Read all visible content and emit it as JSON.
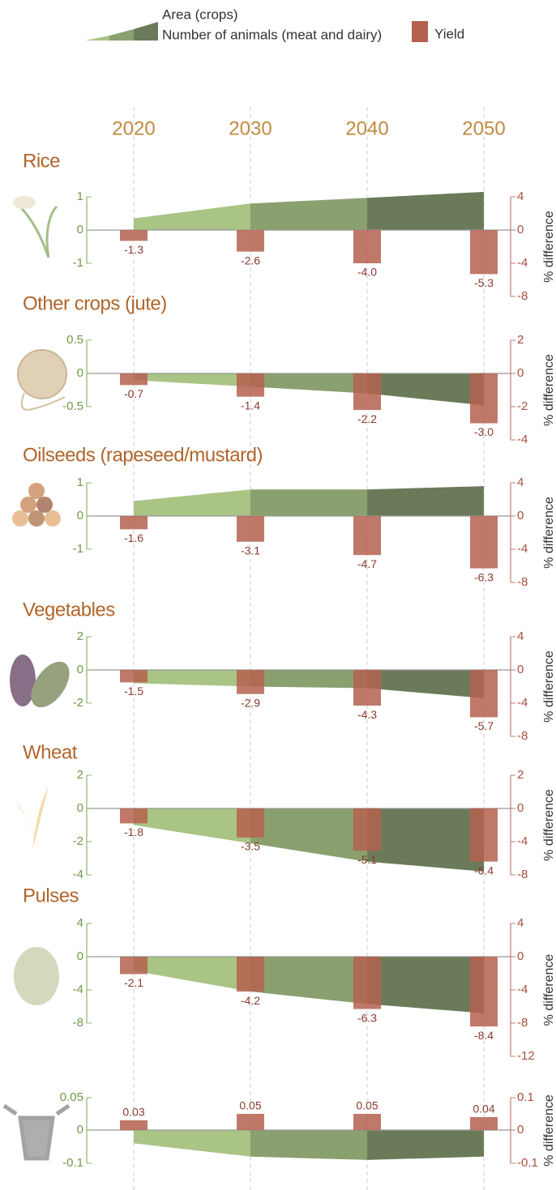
{
  "chart_data": [
    {
      "type": "combo",
      "title": "Rice",
      "categories": [
        "2020",
        "2030",
        "2040",
        "2050"
      ],
      "series": [
        {
          "name": "Area (crops)",
          "colors": [
            "#a9c485",
            "#8aa06f",
            "#6b7b5a"
          ],
          "values": [
            0.35,
            0.8,
            0.97,
            1.15
          ]
        },
        {
          "name": "Yield",
          "color": "#b5614f",
          "axis": "y2",
          "values": [
            -1.3,
            -2.6,
            -4.0,
            -5.3
          ],
          "value_labels": [
            "-1.3",
            "-2.6",
            "-4.0",
            "-5.3"
          ]
        }
      ],
      "ylim": [
        -1,
        1
      ],
      "yticks": [
        -1,
        0,
        1
      ],
      "y2lim": [
        -8,
        4
      ],
      "y2ticks": [
        4,
        0,
        -4,
        -8
      ],
      "y2label": "% difference"
    },
    {
      "type": "combo",
      "title": "Other crops (jute)",
      "categories": [
        "2020",
        "2030",
        "2040",
        "2050"
      ],
      "series": [
        {
          "name": "Area (crops)",
          "colors": [
            "#a9c485",
            "#8aa06f",
            "#6b7b5a"
          ],
          "values": [
            -0.1,
            -0.2,
            -0.3,
            -0.48
          ]
        },
        {
          "name": "Yield",
          "color": "#b5614f",
          "axis": "y2",
          "values": [
            -0.7,
            -1.4,
            -2.2,
            -3.0
          ],
          "value_labels": [
            "-0.7",
            "-1.4",
            "-2.2",
            "-3.0"
          ]
        }
      ],
      "ylim": [
        -0.5,
        0.5
      ],
      "yticks": [
        0.5,
        0,
        -0.5
      ],
      "y2lim": [
        -4,
        2
      ],
      "y2ticks": [
        2,
        0,
        -2,
        -4
      ],
      "y2label": "% difference"
    },
    {
      "type": "combo",
      "title": "Oilseeds (rapeseed/mustard)",
      "categories": [
        "2020",
        "2030",
        "2040",
        "2050"
      ],
      "series": [
        {
          "name": "Area (crops)",
          "colors": [
            "#a9c485",
            "#8aa06f",
            "#6b7b5a"
          ],
          "values": [
            0.45,
            0.8,
            0.8,
            0.9
          ]
        },
        {
          "name": "Yield",
          "color": "#b5614f",
          "axis": "y2",
          "values": [
            -1.6,
            -3.1,
            -4.7,
            -6.3
          ],
          "value_labels": [
            "-1.6",
            "-3.1",
            "-4.7",
            "-6.3"
          ]
        }
      ],
      "ylim": [
        -1,
        1
      ],
      "yticks": [
        1,
        0,
        -1
      ],
      "y2lim": [
        -8,
        4
      ],
      "y2ticks": [
        4,
        0,
        -4,
        -8
      ],
      "y2label": "% difference"
    },
    {
      "type": "combo",
      "title": "Vegetables",
      "categories": [
        "2020",
        "2030",
        "2040",
        "2050"
      ],
      "series": [
        {
          "name": "Area (crops)",
          "colors": [
            "#a9c485",
            "#8aa06f",
            "#6b7b5a"
          ],
          "values": [
            -0.8,
            -1.0,
            -1.1,
            -1.7
          ]
        },
        {
          "name": "Yield",
          "color": "#b5614f",
          "axis": "y2",
          "values": [
            -1.5,
            -2.9,
            -4.3,
            -5.7
          ],
          "value_labels": [
            "-1.5",
            "-2.9",
            "-4.3",
            "-5.7"
          ]
        }
      ],
      "ylim": [
        -2,
        2
      ],
      "yticks": [
        2,
        0,
        -2
      ],
      "y2lim": [
        -8,
        4
      ],
      "y2ticks": [
        4,
        0,
        -4,
        -8
      ],
      "y2label": "% difference"
    },
    {
      "type": "combo",
      "title": "Wheat",
      "categories": [
        "2020",
        "2030",
        "2040",
        "2050"
      ],
      "series": [
        {
          "name": "Area (crops)",
          "colors": [
            "#a9c485",
            "#8aa06f",
            "#6b7b5a"
          ],
          "values": [
            -1.0,
            -2.1,
            -3.2,
            -3.8
          ]
        },
        {
          "name": "Yield",
          "color": "#b5614f",
          "axis": "y2",
          "values": [
            -1.8,
            -3.5,
            -5.1,
            -6.4
          ],
          "value_labels": [
            "-1.8",
            "-3.5",
            "-5.1",
            "-6.4"
          ]
        }
      ],
      "ylim": [
        -4,
        2
      ],
      "yticks": [
        2,
        0,
        -2,
        -4
      ],
      "y2lim": [
        -8,
        2
      ],
      "y2ticks": [
        2,
        0,
        -4,
        -8
      ],
      "y2label": "% difference"
    },
    {
      "type": "combo",
      "title": "Pulses",
      "categories": [
        "2020",
        "2030",
        "2040",
        "2050"
      ],
      "series": [
        {
          "name": "Area (crops)",
          "colors": [
            "#a9c485",
            "#8aa06f",
            "#6b7b5a"
          ],
          "values": [
            -1.7,
            -4.2,
            -5.7,
            -6.8
          ]
        },
        {
          "name": "Yield",
          "color": "#b5614f",
          "axis": "y2",
          "values": [
            -2.1,
            -4.2,
            -6.3,
            -8.4
          ],
          "value_labels": [
            "-2.1",
            "-4.2",
            "-6.3",
            "-8.4"
          ]
        }
      ],
      "ylim": [
        -8,
        4
      ],
      "yticks": [
        4,
        0,
        -4,
        -8
      ],
      "y2lim": [
        -12,
        4
      ],
      "y2ticks": [
        4,
        0,
        -4,
        -8,
        -12
      ],
      "y2label": "% difference"
    },
    {
      "type": "combo",
      "categories": [
        "2020",
        "2030",
        "2040",
        "2050"
      ],
      "series": [
        {
          "name": "Number of animals (meat and dairy)",
          "colors": [
            "#a9c485",
            "#8aa06f",
            "#6b7b5a"
          ],
          "values": [
            -0.04,
            -0.08,
            -0.09,
            -0.08
          ]
        },
        {
          "name": "Yield",
          "color": "#b5614f",
          "axis": "y2",
          "values": [
            0.03,
            0.05,
            0.05,
            0.04
          ],
          "value_labels": [
            "0.03",
            "0.05",
            "0.05",
            "0.04"
          ]
        }
      ],
      "ylim": [
        -0.1,
        0.05
      ],
      "yticks": [
        0.05,
        0,
        -0.1
      ],
      "y2lim": [
        -0.1,
        0.1
      ],
      "y2ticks": [
        0.1,
        0,
        -0.1
      ],
      "y2label": "% difference"
    }
  ]
}
